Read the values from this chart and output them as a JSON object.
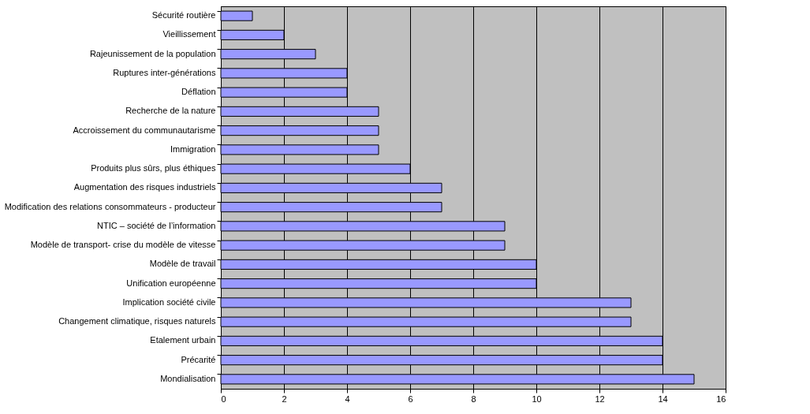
{
  "chart_data": {
    "type": "bar",
    "orientation": "horizontal",
    "categories": [
      "Sécurité routière",
      "Vieillissement",
      "Rajeunissement de la population",
      "Ruptures inter-générations",
      "Déflation",
      "Recherche de la nature ",
      "Accroissement du communautarisme",
      "Immigration",
      "Produits plus sûrs, plus éthiques",
      "Augmentation des risques industriels",
      "Modification des relations consommateurs - producteur",
      "NTIC – société de l’information",
      "Modèle de transport- crise du modèle de vitesse",
      "Modèle de travail",
      "Unification européenne",
      "Implication société civile",
      "Changement climatique, risques naturels",
      "Etalement urbain",
      "Précarité",
      "Mondialisation"
    ],
    "values": [
      1,
      2,
      3,
      4,
      4,
      5,
      5,
      5,
      6,
      7,
      7,
      9,
      9,
      10,
      10,
      13,
      13,
      14,
      14,
      15
    ],
    "color": "#9999ff",
    "xlim": [
      0,
      16
    ],
    "xticks": [
      0,
      2,
      4,
      6,
      8,
      10,
      12,
      14,
      16
    ],
    "grid": "x"
  }
}
